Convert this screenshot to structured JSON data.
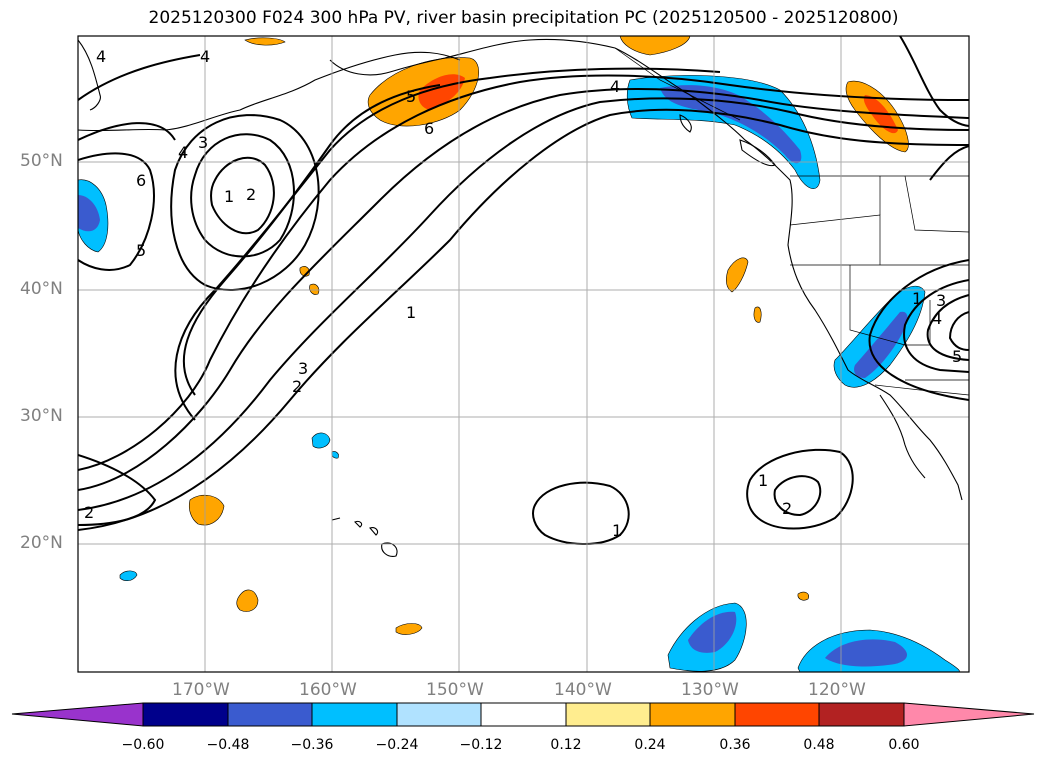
{
  "title": "2025120300 F024 300 hPa PV, river basin precipitation PC (2025120500 - 2025120800)",
  "axes": {
    "lat_labels": [
      "50°N",
      "40°N",
      "30°N",
      "20°N"
    ],
    "lon_labels": [
      "170°W",
      "160°W",
      "150°W",
      "140°W",
      "130°W",
      "120°W"
    ]
  },
  "contour_labels": [
    "4",
    "4",
    "3",
    "4",
    "6",
    "5",
    "1",
    "2",
    "5",
    "6",
    "4",
    "2",
    "3",
    "1",
    "1",
    "1",
    "2",
    "1",
    "3",
    "4",
    "5",
    "2"
  ],
  "colorbar": {
    "ticks": [
      "−0.60",
      "−0.48",
      "−0.36",
      "−0.24",
      "−0.12",
      "0.12",
      "0.24",
      "0.36",
      "0.48",
      "0.60"
    ],
    "colors": {
      "under": "#9933cc",
      "b1": "#00008b",
      "b2": "#3a5bcf",
      "b3": "#00bfff",
      "b4": "#b0e2ff",
      "b5": "#ffffff",
      "b6": "#ffed8f",
      "b7": "#ffa500",
      "b8": "#ff4500",
      "b9": "#b22222",
      "over": "#ff88aa"
    }
  }
}
